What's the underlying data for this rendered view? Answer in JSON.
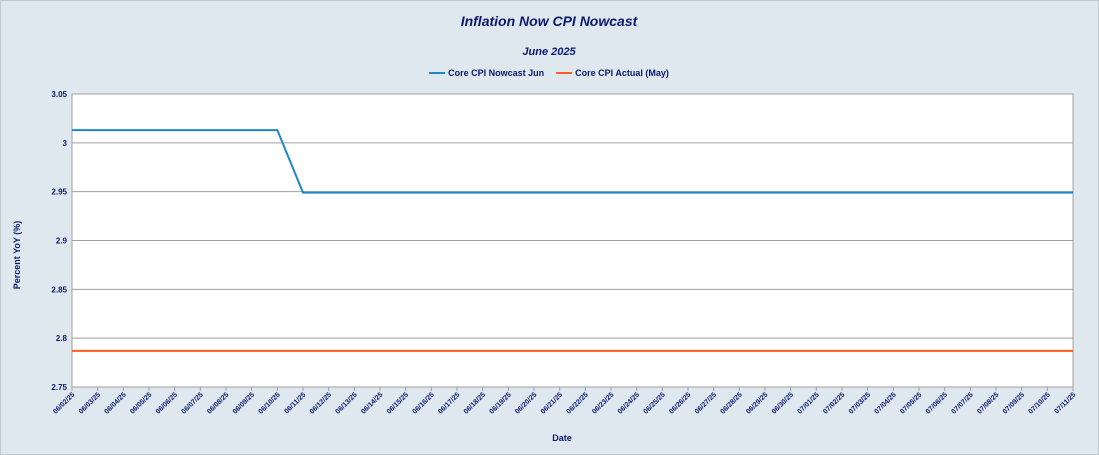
{
  "chart_data": {
    "type": "line",
    "title": "Inflation Now CPI Nowcast",
    "subtitle": "June 2025",
    "x_label": "Date",
    "y_label": "Percent YoY (%)",
    "categories": [
      "06/02/25",
      "06/03/25",
      "06/04/25",
      "06/05/25",
      "06/06/25",
      "06/07/25",
      "06/08/25",
      "06/09/25",
      "06/10/25",
      "06/11/25",
      "06/12/25",
      "06/13/25",
      "06/14/25",
      "06/15/25",
      "06/16/25",
      "06/17/25",
      "06/18/25",
      "06/19/25",
      "06/20/25",
      "06/21/25",
      "06/22/25",
      "06/23/25",
      "06/24/25",
      "06/25/25",
      "06/26/25",
      "06/27/25",
      "06/28/25",
      "06/29/25",
      "06/30/25",
      "07/01/25",
      "07/02/25",
      "07/03/25",
      "07/04/25",
      "07/05/25",
      "07/06/25",
      "07/07/25",
      "07/08/25",
      "07/09/25",
      "07/10/25",
      "07/11/25"
    ],
    "series": [
      {
        "name": "Core CPI Nowcast Jun",
        "color": "#1f86c8",
        "values": [
          3.013,
          3.013,
          3.013,
          3.013,
          3.013,
          3.013,
          3.013,
          3.013,
          3.013,
          2.949,
          2.949,
          2.949,
          2.949,
          2.949,
          2.949,
          2.949,
          2.949,
          2.949,
          2.949,
          2.949,
          2.949,
          2.949,
          2.949,
          2.949,
          2.949,
          2.949,
          2.949,
          2.949,
          2.949,
          2.949,
          2.949,
          2.949,
          2.949,
          2.949,
          2.949,
          2.949,
          2.949,
          2.949,
          2.949,
          2.949
        ]
      },
      {
        "name": "Core CPI Actual (May)",
        "color": "#ff5a1f",
        "values": [
          2.787,
          2.787,
          2.787,
          2.787,
          2.787,
          2.787,
          2.787,
          2.787,
          2.787,
          2.787,
          2.787,
          2.787,
          2.787,
          2.787,
          2.787,
          2.787,
          2.787,
          2.787,
          2.787,
          2.787,
          2.787,
          2.787,
          2.787,
          2.787,
          2.787,
          2.787,
          2.787,
          2.787,
          2.787,
          2.787,
          2.787,
          2.787,
          2.787,
          2.787,
          2.787,
          2.787,
          2.787,
          2.787,
          2.787,
          2.787
        ]
      }
    ],
    "ylim": [
      2.75,
      3.05
    ],
    "yticks": [
      2.75,
      2.8,
      2.85,
      2.9,
      2.95,
      3,
      3.05
    ],
    "grid": true,
    "legend": "top"
  }
}
